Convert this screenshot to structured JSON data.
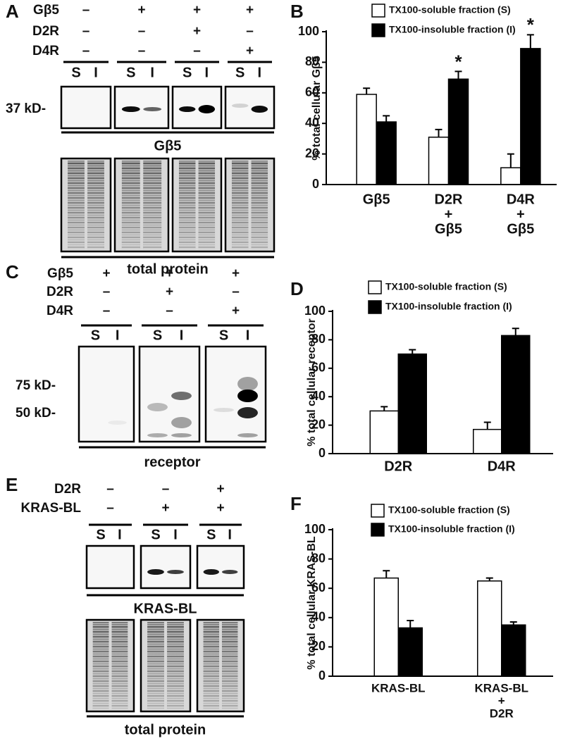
{
  "blots": [
    {
      "panel": "A",
      "rows": [
        {
          "label": "Gβ5",
          "signs": [
            "–",
            "+",
            "+",
            "+"
          ]
        },
        {
          "label": "D2R",
          "signs": [
            "–",
            "–",
            "+",
            "–"
          ]
        },
        {
          "label": "D4R",
          "signs": [
            "–",
            "–",
            "–",
            "+"
          ]
        }
      ],
      "lanes": [
        [
          "S",
          "I"
        ],
        [
          "S",
          "I"
        ],
        [
          "S",
          "I"
        ],
        [
          "S",
          "I"
        ]
      ],
      "markers": [
        "37 kD-"
      ],
      "caption": "Gβ5",
      "total_caption": "total protein"
    },
    {
      "panel": "C",
      "rows": [
        {
          "label": "Gβ5",
          "signs": [
            "+",
            "+",
            "+"
          ]
        },
        {
          "label": "D2R",
          "signs": [
            "–",
            "+",
            "–"
          ]
        },
        {
          "label": "D4R",
          "signs": [
            "–",
            "–",
            "+"
          ]
        }
      ],
      "lanes": [
        [
          "S",
          "I"
        ],
        [
          "S",
          "I"
        ],
        [
          "S",
          "I"
        ]
      ],
      "markers": [
        "75 kD-",
        "50 kD-"
      ],
      "caption": "receptor"
    },
    {
      "panel": "E",
      "rows": [
        {
          "label": "D2R",
          "signs": [
            "–",
            "–",
            "+"
          ]
        },
        {
          "label": "KRAS-BL",
          "signs": [
            "–",
            "+",
            "+"
          ]
        }
      ],
      "lanes": [
        [
          "S",
          "I"
        ],
        [
          "S",
          "I"
        ],
        [
          "S",
          "I"
        ]
      ],
      "markers": [],
      "caption": "KRAS-BL",
      "total_caption": "total protein"
    }
  ],
  "chart_data": [
    {
      "type": "bar",
      "panel": "B",
      "ylabel": "% total cellular Gβ5",
      "categories": [
        [
          "Gβ5"
        ],
        [
          "D2R",
          "+",
          "Gβ5"
        ],
        [
          "D4R",
          "+",
          "Gβ5"
        ]
      ],
      "series": [
        {
          "name": "TX100-soluble fraction (S)",
          "color": "#ffffff",
          "values": [
            59,
            31,
            11
          ],
          "errors": [
            4,
            5,
            9
          ]
        },
        {
          "name": "TX100-insoluble fraction (I)",
          "color": "#000000",
          "values": [
            41,
            69,
            89
          ],
          "errors": [
            4,
            5,
            9
          ],
          "markers": [
            null,
            "*",
            "*"
          ]
        }
      ],
      "ylim": [
        0,
        100
      ],
      "yticks": [
        0,
        20,
        40,
        60,
        80,
        100
      ]
    },
    {
      "type": "bar",
      "panel": "D",
      "ylabel": "% total cellular receptor",
      "categories": [
        [
          "D2R"
        ],
        [
          "D4R"
        ]
      ],
      "series": [
        {
          "name": "TX100-soluble fraction (S)",
          "color": "#ffffff",
          "values": [
            30,
            17
          ],
          "errors": [
            3,
            5
          ]
        },
        {
          "name": "TX100-insoluble fraction (I)",
          "color": "#000000",
          "values": [
            70,
            83
          ],
          "errors": [
            3,
            5
          ]
        }
      ],
      "ylim": [
        0,
        100
      ],
      "yticks": [
        0,
        20,
        40,
        60,
        80,
        100
      ]
    },
    {
      "type": "bar",
      "panel": "F",
      "ylabel": "% total cellular KRAS-BL",
      "categories": [
        [
          "KRAS-BL"
        ],
        [
          "KRAS-BL",
          "+",
          "D2R"
        ]
      ],
      "series": [
        {
          "name": "TX100-soluble fraction (S)",
          "color": "#ffffff",
          "values": [
            67,
            65
          ],
          "errors": [
            5,
            2
          ]
        },
        {
          "name": "TX100-insoluble fraction (I)",
          "color": "#000000",
          "values": [
            33,
            35
          ],
          "errors": [
            5,
            2
          ]
        }
      ],
      "ylim": [
        0,
        100
      ],
      "yticks": [
        0,
        20,
        40,
        60,
        80,
        100
      ]
    }
  ]
}
